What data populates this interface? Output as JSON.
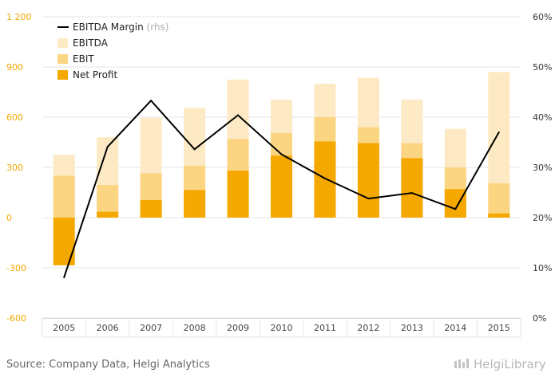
{
  "chart_data": {
    "type": "bar",
    "categories": [
      "2005",
      "2006",
      "2007",
      "2008",
      "2009",
      "2010",
      "2011",
      "2012",
      "2013",
      "2014",
      "2015"
    ],
    "series": [
      {
        "name": "EBITDA",
        "kind": "bar",
        "axis": "left",
        "values": [
          375,
          480,
          595,
          655,
          825,
          705,
          800,
          835,
          705,
          530,
          870
        ]
      },
      {
        "name": "EBIT",
        "kind": "bar",
        "axis": "left",
        "values": [
          250,
          195,
          265,
          310,
          470,
          505,
          600,
          540,
          445,
          300,
          205
        ]
      },
      {
        "name": "Net Profit",
        "kind": "bar",
        "axis": "left",
        "values": [
          -285,
          35,
          105,
          165,
          280,
          370,
          455,
          445,
          355,
          170,
          25
        ]
      },
      {
        "name": "EBITDA Margin",
        "kind": "line",
        "axis": "right",
        "values": [
          8.1,
          34.1,
          43.3,
          33.6,
          40.4,
          32.6,
          27.8,
          23.8,
          24.9,
          21.7,
          37.0
        ]
      }
    ],
    "left_axis": {
      "min": -600,
      "max": 1200,
      "ticks": [
        -600,
        -300,
        0,
        300,
        600,
        900,
        1200
      ],
      "tick_labels": [
        "-600",
        "-300",
        "0",
        "300",
        "600",
        "900",
        "1 200"
      ]
    },
    "right_axis": {
      "min": 0,
      "max": 60,
      "ticks": [
        0,
        10,
        20,
        30,
        40,
        50,
        60
      ],
      "tick_labels": [
        "0%",
        "10%",
        "20%",
        "30%",
        "40%",
        "50%",
        "60%"
      ]
    },
    "legend": {
      "position": "top-left",
      "items": [
        {
          "label": "EBITDA Margin",
          "suffix": "(rhs)",
          "type": "line",
          "color": "#000000"
        },
        {
          "label": "EBITDA",
          "type": "bar",
          "color": "#fdeac4"
        },
        {
          "label": "EBIT",
          "type": "bar",
          "color": "#fcd583"
        },
        {
          "label": "Net Profit",
          "type": "bar",
          "color": "#f5a800"
        }
      ]
    },
    "grid": true,
    "colors": {
      "ebitda": "#fdeac4",
      "ebit": "#fcd583",
      "net_profit": "#f5a800",
      "line": "#000000",
      "left_tick": "#f5a800",
      "right_tick": "#333333"
    }
  },
  "footer": {
    "source": "Source: Company Data, Helgi Analytics",
    "logo_text": "HelgiLibrary"
  }
}
